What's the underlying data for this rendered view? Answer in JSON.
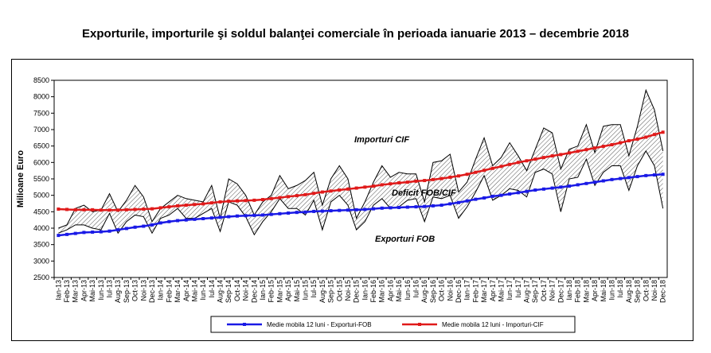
{
  "title": "Exporturile, importurile şi soldul balanţei comerciale în perioada ianuarie 2013 – decembrie 2018",
  "chart_data": {
    "type": "line",
    "title": "Exporturile, importurile şi soldul balanţei comerciale în perioada ianuarie 2013 – decembrie 2018",
    "xlabel": "",
    "ylabel": "Milioane Euro",
    "ylim": [
      2500,
      8500
    ],
    "yticks": [
      2500,
      3000,
      3500,
      4000,
      4500,
      5000,
      5500,
      6000,
      6500,
      7000,
      7500,
      8000,
      8500
    ],
    "grid": false,
    "legend_position": "bottom",
    "categories": [
      "Ian-13",
      "Feb-13",
      "Mar-13",
      "Apr-13",
      "Mai-13",
      "Iun-13",
      "Iul-13",
      "Aug-13",
      "Sep-13",
      "Oct-13",
      "Noi-13",
      "Dec-13",
      "Ian-14",
      "Feb-14",
      "Mar-14",
      "Apr-14",
      "Mai-14",
      "Iun-14",
      "Iul-14",
      "Aug-14",
      "Sep-14",
      "Oct-14",
      "Noi-14",
      "Dec-14",
      "Ian-15",
      "Feb-15",
      "Mar-15",
      "Apr-15",
      "Mai-15",
      "Iun-15",
      "Iul-15",
      "Aug-15",
      "Sep-15",
      "Oct-15",
      "Noi-15",
      "Dec-15",
      "Ian-16",
      "Feb-16",
      "Mar-16",
      "Apr-16",
      "Mai-16",
      "Iun-16",
      "Iul-16",
      "Aug-16",
      "Sep-16",
      "Oct-16",
      "Noi-16",
      "Dec-16",
      "Ian-17",
      "Feb-17",
      "Mar-17",
      "Apr-17",
      "Mai-17",
      "Iun-17",
      "Iul-17",
      "Aug-17",
      "Sep-17",
      "Oct-17",
      "Noi-17",
      "Dec-17",
      "Ian-18",
      "Feb-18",
      "Mar-18",
      "Apr-18",
      "Mai-18",
      "Iun-18",
      "Iul-18",
      "Aug-18",
      "Sep-18",
      "Oct-18",
      "Noi-18",
      "Dec-18"
    ],
    "series": [
      {
        "name": "Medie mobila 12 luni - Exporturi-FOB",
        "color": "#1a1ae6",
        "values": [
          3780,
          3810,
          3840,
          3870,
          3880,
          3890,
          3910,
          3950,
          3990,
          4030,
          4060,
          4100,
          4160,
          4200,
          4230,
          4250,
          4270,
          4290,
          4310,
          4330,
          4350,
          4370,
          4380,
          4390,
          4400,
          4420,
          4440,
          4460,
          4480,
          4490,
          4510,
          4520,
          4530,
          4540,
          4550,
          4560,
          4570,
          4590,
          4610,
          4620,
          4630,
          4640,
          4650,
          4660,
          4680,
          4700,
          4740,
          4780,
          4830,
          4880,
          4920,
          4970,
          5000,
          5040,
          5080,
          5120,
          5160,
          5190,
          5220,
          5250,
          5280,
          5320,
          5360,
          5400,
          5440,
          5480,
          5510,
          5540,
          5570,
          5600,
          5620,
          5640
        ]
      },
      {
        "name": "Medie mobila 12 luni - Importuri-CIF",
        "color": "#e01a1a",
        "values": [
          4580,
          4570,
          4560,
          4560,
          4560,
          4550,
          4550,
          4550,
          4560,
          4570,
          4580,
          4590,
          4620,
          4650,
          4680,
          4700,
          4720,
          4740,
          4770,
          4800,
          4820,
          4830,
          4840,
          4850,
          4870,
          4900,
          4930,
          4960,
          4990,
          5020,
          5060,
          5100,
          5130,
          5160,
          5190,
          5220,
          5250,
          5280,
          5320,
          5350,
          5380,
          5400,
          5430,
          5450,
          5480,
          5510,
          5550,
          5590,
          5640,
          5700,
          5760,
          5820,
          5880,
          5940,
          6000,
          6050,
          6100,
          6150,
          6200,
          6240,
          6290,
          6340,
          6390,
          6440,
          6490,
          6540,
          6600,
          6660,
          6710,
          6770,
          6850,
          6920
        ]
      },
      {
        "name": "Exporturi FOB",
        "values": [
          3850,
          3950,
          4100,
          4100,
          4000,
          3950,
          4450,
          3850,
          4200,
          4400,
          4350,
          3850,
          4300,
          4400,
          4600,
          4300,
          4300,
          4450,
          4600,
          3900,
          4800,
          4700,
          4350,
          3800,
          4200,
          4500,
          4900,
          4600,
          4600,
          4400,
          4850,
          3950,
          4800,
          5000,
          4700,
          3950,
          4200,
          4700,
          4900,
          4600,
          4650,
          4850,
          4900,
          4200,
          4950,
          4900,
          5000,
          4300,
          4650,
          5100,
          5600,
          4850,
          5000,
          5200,
          5150,
          4950,
          5700,
          5800,
          5650,
          4500,
          5500,
          5550,
          6100,
          5300,
          5700,
          5900,
          5900,
          5150,
          5900,
          6350,
          5900,
          4600
        ]
      },
      {
        "name": "Importuri CIF",
        "values": [
          4000,
          4100,
          4600,
          4700,
          4500,
          4550,
          5050,
          4500,
          4850,
          5300,
          4950,
          4200,
          4600,
          4800,
          5000,
          4900,
          4850,
          4800,
          5300,
          4300,
          5500,
          5350,
          5000,
          4400,
          4800,
          5000,
          5600,
          5200,
          5300,
          5450,
          5700,
          4700,
          5500,
          5900,
          5500,
          4300,
          4800,
          5400,
          5900,
          5550,
          5700,
          5650,
          5650,
          4800,
          6000,
          6050,
          6250,
          5100,
          5400,
          6100,
          6750,
          5900,
          6150,
          6600,
          6200,
          5750,
          6400,
          7050,
          6900,
          5800,
          6400,
          6500,
          7150,
          6300,
          7100,
          7150,
          7150,
          6200,
          7100,
          8200,
          7600,
          6350
        ]
      }
    ],
    "annotations": [
      "Importuri CIF",
      "Deficit FOB/CIF",
      "Exporturi FOB"
    ],
    "legend": [
      "Medie mobila 12 luni - Exporturi-FOB",
      "Medie mobila 12 luni - Importuri-CIF"
    ]
  }
}
